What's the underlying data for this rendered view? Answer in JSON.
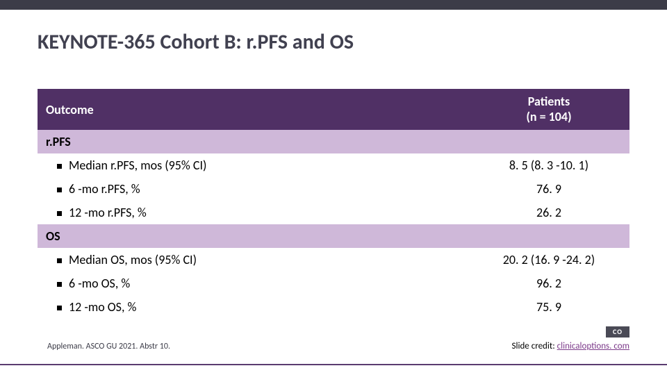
{
  "title": "KEYNOTE-365 Cohort B: r.PFS and OS",
  "header": {
    "outcome": "Outcome",
    "patients_line1": "Patients",
    "patients_line2": "(n = 104)"
  },
  "sections": {
    "rpfs": {
      "label": "r.PFS",
      "rows": [
        {
          "label": "Median r.PFS, mos (95% CI)",
          "value": "8. 5 (8. 3 -10. 1)"
        },
        {
          "label": "6 -mo r.PFS, %",
          "value": "76. 9"
        },
        {
          "label": "12 -mo r.PFS, %",
          "value": "26. 2"
        }
      ]
    },
    "os": {
      "label": "OS",
      "rows": [
        {
          "label": "Median OS, mos (95% CI)",
          "value": "20. 2 (16. 9 -24. 2)"
        },
        {
          "label": "6 -mo OS, %",
          "value": "96. 2"
        },
        {
          "label": "12 -mo OS, %",
          "value": "75. 9"
        }
      ]
    }
  },
  "citation": "Appleman. ASCO GU 2021. Abstr 10.",
  "credit_label": "Slide credit: ",
  "credit_link": "clinicaloptions. com",
  "logo_text": "CO",
  "colors": {
    "top_bar": "#3c3c48",
    "header_bg": "#503065",
    "sub_bg": "#cfb8d9",
    "title_color": "#414150",
    "link_color": "#7c3a8a",
    "bottom_line": "#5a3b70"
  }
}
